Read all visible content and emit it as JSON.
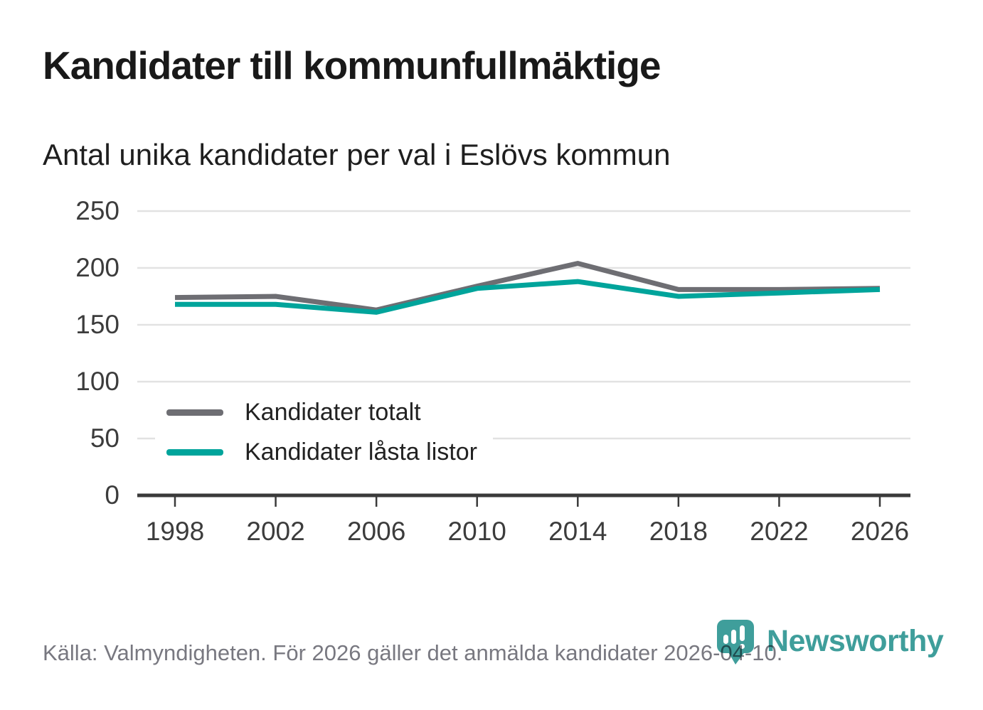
{
  "header": {
    "title": "Kandidater till kommunfullmäktige",
    "subtitle": "Antal unika kandidater per val i Eslövs kommun"
  },
  "footer": {
    "source": "Källa: Valmyndigheten. För 2026 gäller det anmälda kandidater 2026-04-10."
  },
  "brand": {
    "name": "Newsworthy",
    "icon": "newsworthy-speech-bubble-bar-chart-icon",
    "color": "#3f9e9b"
  },
  "colors": {
    "series_total": "#6e6e73",
    "series_locked": "#00a49b",
    "grid": "#e2e2e2",
    "axis": "#3a3a3a",
    "tick_text": "#3c3c3c",
    "title_text": "#191919",
    "source_text": "#787880",
    "background": "#ffffff"
  },
  "chart_data": {
    "type": "line",
    "title": "Kandidater till kommunfullmäktige",
    "subtitle": "Antal unika kandidater per val i Eslövs kommun",
    "categories": [
      "1998",
      "2002",
      "2006",
      "2010",
      "2014",
      "2018",
      "2022",
      "2026"
    ],
    "series": [
      {
        "name": "Kandidater totalt",
        "color": "#6e6e73",
        "values": [
          174,
          175,
          163,
          184,
          204,
          181,
          181,
          182
        ]
      },
      {
        "name": "Kandidater låsta listor",
        "color": "#00a49b",
        "values": [
          168,
          168,
          161,
          182,
          188,
          175,
          178,
          181
        ]
      }
    ],
    "xlabel": "",
    "ylabel": "",
    "ylim": [
      0,
      250
    ],
    "yticks": [
      0,
      50,
      100,
      150,
      200,
      250
    ],
    "grid": true,
    "legend_position": "inside-bottom-left"
  }
}
